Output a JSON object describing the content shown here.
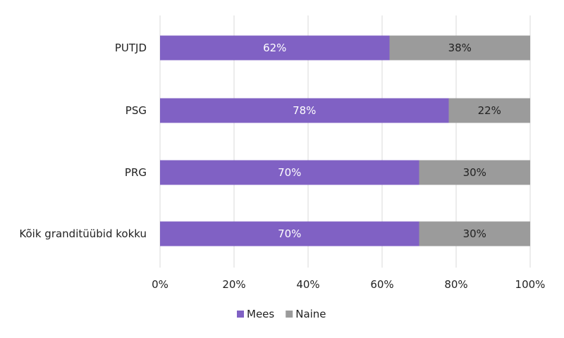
{
  "chart_data": {
    "type": "bar",
    "orientation": "horizontal",
    "stacked": "percent",
    "categories": [
      "PUTJD",
      "PSG",
      "PRG",
      "Kõik granditüübid kokku"
    ],
    "series": [
      {
        "name": "Mees",
        "values": [
          62,
          78,
          70,
          70
        ],
        "labels": [
          "62%",
          "78%",
          "70%",
          "70%"
        ],
        "color": "#8061c4",
        "label_color": "#ffffff"
      },
      {
        "name": "Naine",
        "values": [
          38,
          22,
          30,
          30
        ],
        "labels": [
          "38%",
          "22%",
          "30%",
          "30%"
        ],
        "color": "#9b9b9b",
        "label_color": "#222222"
      }
    ],
    "xlim": [
      0,
      100
    ],
    "x_ticks": [
      "0%",
      "20%",
      "40%",
      "60%",
      "80%",
      "100%"
    ],
    "grid": true,
    "legend_position": "bottom",
    "gridline_color": "#d9d9d9"
  }
}
